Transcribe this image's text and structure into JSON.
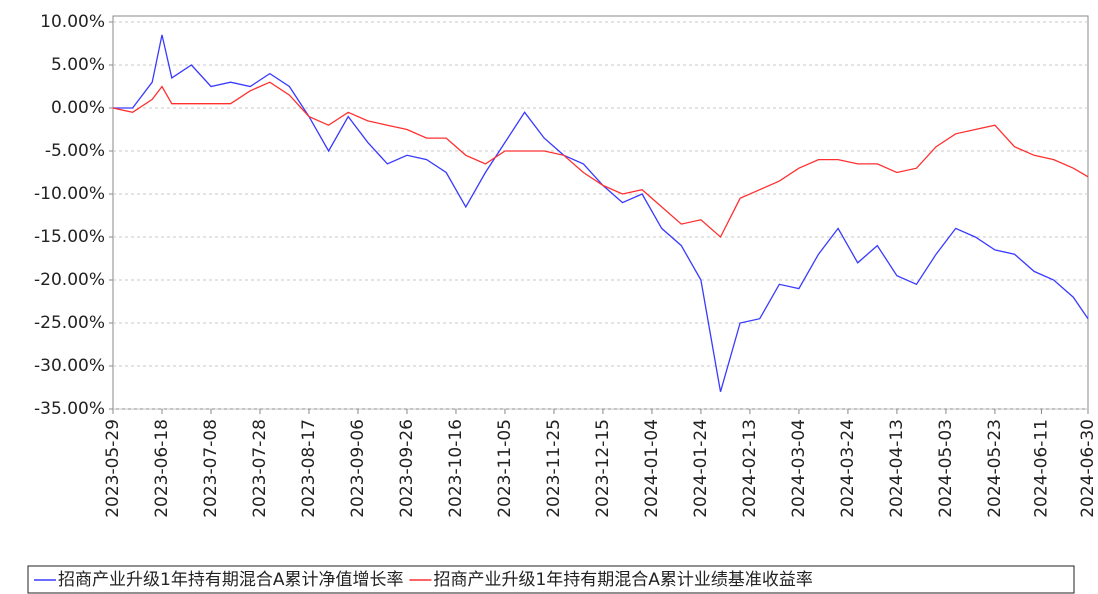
{
  "chart_data": {
    "type": "line",
    "x": [
      "2023-05-29",
      "2023-06-06",
      "2023-06-14",
      "2023-06-18",
      "2023-06-22",
      "2023-06-30",
      "2023-07-08",
      "2023-07-16",
      "2023-07-24",
      "2023-08-01",
      "2023-08-09",
      "2023-08-17",
      "2023-08-25",
      "2023-09-02",
      "2023-09-10",
      "2023-09-18",
      "2023-09-26",
      "2023-10-04",
      "2023-10-12",
      "2023-10-20",
      "2023-10-28",
      "2023-11-05",
      "2023-11-13",
      "2023-11-21",
      "2023-11-29",
      "2023-12-07",
      "2023-12-15",
      "2023-12-23",
      "2023-12-31",
      "2024-01-08",
      "2024-01-16",
      "2024-01-24",
      "2024-02-01",
      "2024-02-09",
      "2024-02-17",
      "2024-02-25",
      "2024-03-04",
      "2024-03-12",
      "2024-03-20",
      "2024-03-28",
      "2024-04-05",
      "2024-04-13",
      "2024-04-21",
      "2024-04-29",
      "2024-05-07",
      "2024-05-15",
      "2024-05-23",
      "2024-05-31",
      "2024-06-08",
      "2024-06-16",
      "2024-06-24",
      "2024-06-30"
    ],
    "series": [
      {
        "name": "招商产业升级1年持有期混合A累计净值增长率",
        "color": "#3a3aff",
        "values": [
          0,
          0,
          3,
          8.5,
          3.5,
          5,
          2.5,
          3,
          2.5,
          4,
          2.5,
          -1,
          -5,
          -1,
          -4,
          -6.5,
          -5.5,
          -6,
          -7.5,
          -11.5,
          -7.5,
          -4,
          -0.5,
          -3.5,
          -5.5,
          -6.5,
          -9,
          -11,
          -10,
          -14,
          -16,
          -20,
          -33,
          -25,
          -24.5,
          -20.5,
          -21,
          -17,
          -14,
          -18,
          -16,
          -19.5,
          -20.5,
          -17,
          -14,
          -15,
          -16.5,
          -17,
          -19,
          -20,
          -22,
          -24.5
        ]
      },
      {
        "name": "招商产业升级1年持有期混合A累计业绩基准收益率",
        "color": "#ff3030",
        "values": [
          0,
          -0.5,
          1,
          2.5,
          0.5,
          0.5,
          0.5,
          0.5,
          2,
          3,
          1.5,
          -1,
          -2,
          -0.5,
          -1.5,
          -2,
          -2.5,
          -3.5,
          -3.5,
          -5.5,
          -6.5,
          -5,
          -5,
          -5,
          -5.5,
          -7.5,
          -9,
          -10,
          -9.5,
          -11.5,
          -13.5,
          -13,
          -15,
          -10.5,
          -9.5,
          -8.5,
          -7,
          -6,
          -6,
          -6.5,
          -6.5,
          -7.5,
          -7,
          -4.5,
          -3,
          -2.5,
          -2,
          -4.5,
          -5.5,
          -6,
          -7,
          -8
        ]
      }
    ],
    "xlim": [
      "2023-05-29",
      "2024-06-30"
    ],
    "xticks": [
      "2023-05-29",
      "2023-06-18",
      "2023-07-08",
      "2023-07-28",
      "2023-08-17",
      "2023-09-06",
      "2023-09-26",
      "2023-10-16",
      "2023-11-05",
      "2023-11-25",
      "2023-12-15",
      "2024-01-04",
      "2024-01-24",
      "2024-02-13",
      "2024-03-04",
      "2024-03-24",
      "2024-04-13",
      "2024-05-03",
      "2024-05-23",
      "2024-06-11",
      "2024-06-30"
    ],
    "ylim": [
      -35,
      10
    ],
    "yticks": [
      {
        "value": 10,
        "label": "10.00%"
      },
      {
        "value": 5,
        "label": "5.00%"
      },
      {
        "value": 0,
        "label": "0.00%"
      },
      {
        "value": -5,
        "label": "-5.00%"
      },
      {
        "value": -10,
        "label": "-10.00%"
      },
      {
        "value": -15,
        "label": "-15.00%"
      },
      {
        "value": -20,
        "label": "-20.00%"
      },
      {
        "value": -25,
        "label": "-25.00%"
      },
      {
        "value": -30,
        "label": "-30.00%"
      },
      {
        "value": -35,
        "label": "-35.00%"
      }
    ],
    "grid": true
  }
}
